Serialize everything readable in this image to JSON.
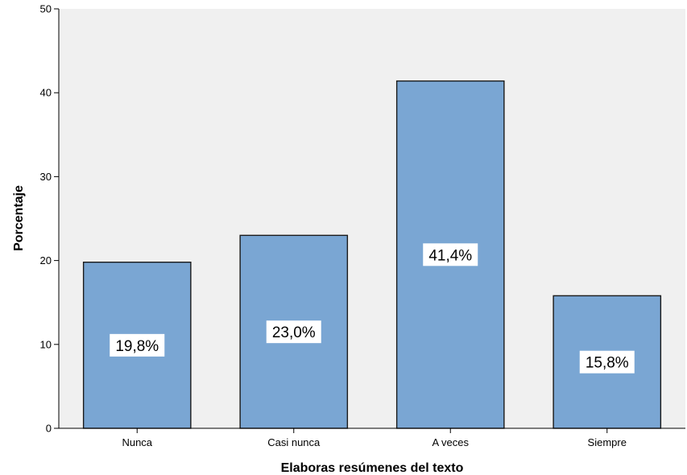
{
  "chart_data": {
    "type": "bar",
    "categories": [
      "Nunca",
      "Casi nunca",
      "A veces",
      "Siempre"
    ],
    "values": [
      19.8,
      23.0,
      41.4,
      15.8
    ],
    "data_labels": [
      "19,8%",
      "23,0%",
      "41,4%",
      "15,8%"
    ],
    "xlabel": "Elaboras resúmenes del texto",
    "ylabel": "Porcentaje",
    "ylim": [
      0,
      50
    ],
    "yticks": [
      0,
      10,
      20,
      30,
      40,
      50
    ],
    "ytick_labels": [
      "0",
      "10",
      "20",
      "30",
      "40",
      "50"
    ],
    "grid": false,
    "colors": {
      "bar_fill": "#7aa6d3",
      "bar_stroke": "#1a1a1a",
      "plot_background": "#f0f0f0"
    }
  }
}
